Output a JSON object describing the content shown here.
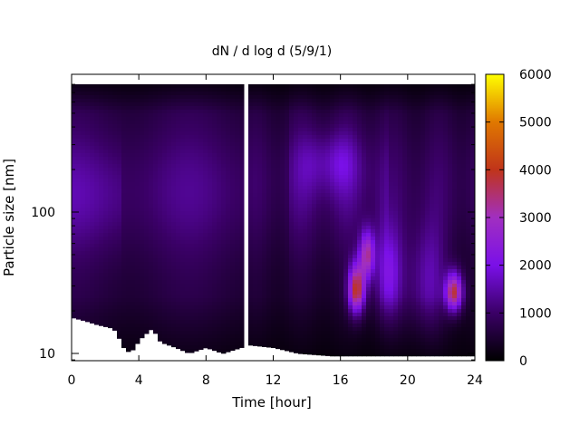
{
  "chart_data": {
    "type": "heatmap",
    "title": "dN / d log d (5/9/1)",
    "xlabel": "Time [hour]",
    "ylabel": "Particle size [nm]",
    "xlim": [
      0,
      24
    ],
    "x_ticks": [
      0,
      4,
      8,
      12,
      16,
      20,
      24
    ],
    "y_scale": "log",
    "ylim": [
      8.5,
      850
    ],
    "y_ticks": [
      10,
      100
    ],
    "colorbar": {
      "range": [
        0,
        6000
      ],
      "ticks": [
        0,
        1000,
        2000,
        3000,
        4000,
        5000,
        6000
      ],
      "colors": [
        "#000000",
        "#3a0066",
        "#7a10e8",
        "#a12fc0",
        "#c0341a",
        "#e07800",
        "#ffff00"
      ]
    },
    "data_gap_hours": [
      10.15,
      10.45
    ],
    "lower_size_limit_nm": [
      [
        0,
        18
      ],
      [
        0.8,
        17
      ],
      [
        1.5,
        16
      ],
      [
        2.5,
        15
      ],
      [
        3.1,
        11
      ],
      [
        3.5,
        10
      ],
      [
        4.2,
        13
      ],
      [
        4.8,
        15
      ],
      [
        5.3,
        12
      ],
      [
        6.2,
        11
      ],
      [
        7.0,
        10
      ],
      [
        8.0,
        11
      ],
      [
        9.0,
        10
      ],
      [
        10.1,
        11
      ],
      [
        10.5,
        11.5
      ],
      [
        12.0,
        11
      ],
      [
        13.5,
        10
      ],
      [
        14.5,
        9.8
      ],
      [
        15.5,
        9.6
      ],
      [
        24,
        9.6
      ]
    ],
    "upper_size_limit_nm": 800,
    "features": [
      {
        "time_h": 1.5,
        "size_nm": 150,
        "value": 1400
      },
      {
        "time_h": 15.5,
        "size_nm": 220,
        "value": 1500
      },
      {
        "time_h": 17.0,
        "size_nm": 28,
        "value": 4200
      },
      {
        "time_h": 17.6,
        "size_nm": 50,
        "value": 3800
      },
      {
        "time_h": 22.8,
        "size_nm": 27,
        "value": 4600
      }
    ]
  }
}
